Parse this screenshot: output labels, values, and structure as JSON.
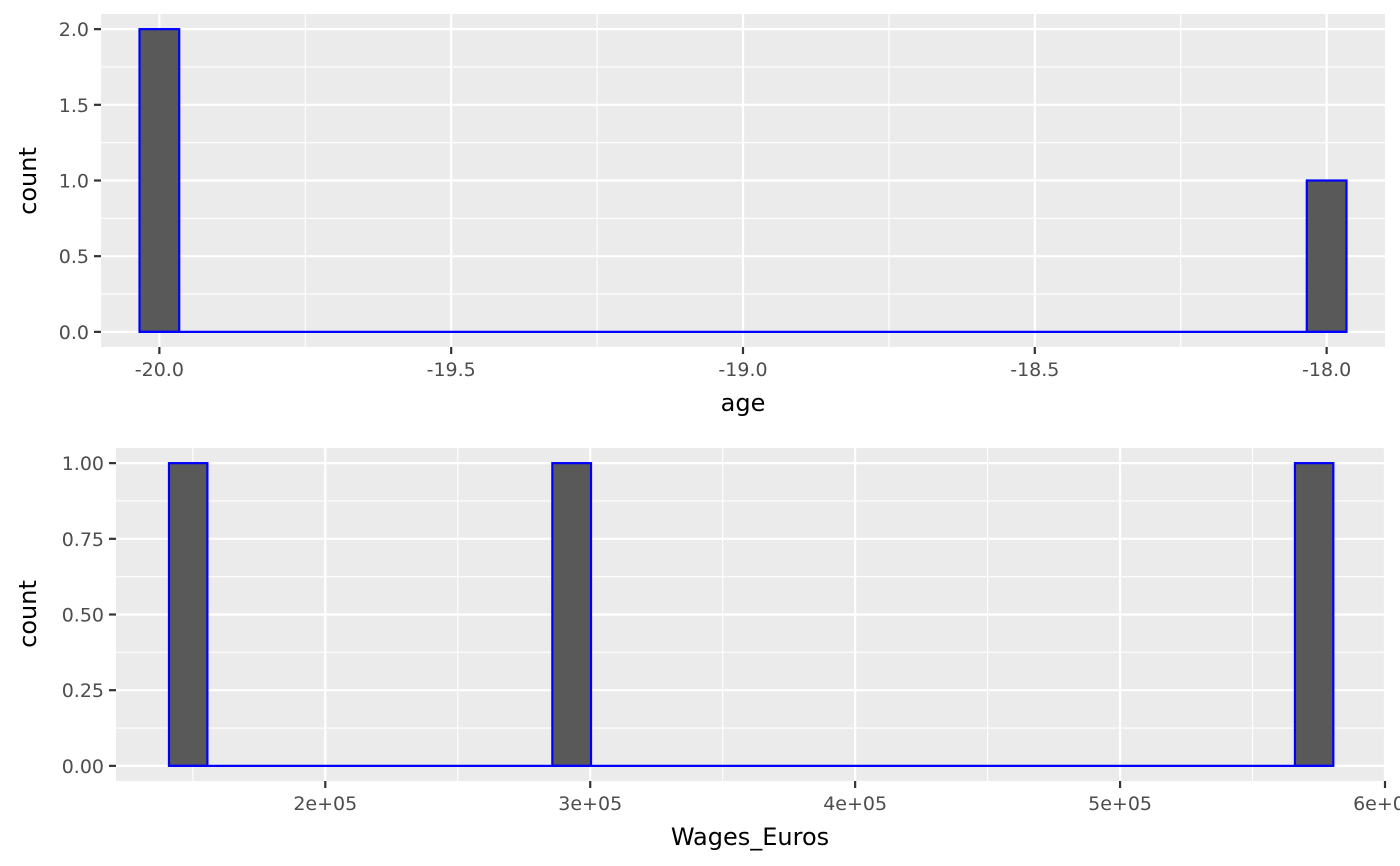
{
  "colors": {
    "panel_background": "#EBEBEB",
    "gridline": "#FFFFFF",
    "bar_fill": "#595959",
    "bar_outline": "#0000FF",
    "tick_label": "#4D4D4D",
    "axis_title": "#000000"
  },
  "chart_data": [
    {
      "type": "bar",
      "subtype": "histogram",
      "xlabel": "age",
      "ylabel": "count",
      "xlim": [
        -20.1,
        -17.9
      ],
      "ylim": [
        -0.1,
        2.1
      ],
      "grid": true,
      "legend": "none",
      "x_ticks": [
        {
          "value": -20.0,
          "label": "-20.0"
        },
        {
          "value": -19.5,
          "label": "-19.5"
        },
        {
          "value": -19.0,
          "label": "-19.0"
        },
        {
          "value": -18.5,
          "label": "-18.5"
        },
        {
          "value": -18.0,
          "label": "-18.0"
        }
      ],
      "y_ticks": [
        {
          "value": 0.0,
          "label": "0.0"
        },
        {
          "value": 0.5,
          "label": "0.5"
        },
        {
          "value": 1.0,
          "label": "1.0"
        },
        {
          "value": 1.5,
          "label": "1.5"
        },
        {
          "value": 2.0,
          "label": "2.0"
        }
      ],
      "bin_range": [
        -20.034,
        -17.966
      ],
      "bins": [
        {
          "x_min": -20.034,
          "x_max": -19.966,
          "count": 2
        },
        {
          "x_min": -18.034,
          "x_max": -17.966,
          "count": 1
        }
      ]
    },
    {
      "type": "bar",
      "subtype": "histogram",
      "xlabel": "Wages_Euros",
      "ylabel": "count",
      "xlim": [
        121000,
        600000
      ],
      "ylim": [
        -0.05,
        1.05
      ],
      "grid": true,
      "legend": "none",
      "x_ticks": [
        {
          "value": 200000,
          "label": "2e+05"
        },
        {
          "value": 300000,
          "label": "3e+05"
        },
        {
          "value": 400000,
          "label": "4e+05"
        },
        {
          "value": 500000,
          "label": "5e+05"
        },
        {
          "value": 600000,
          "label": "6e+05"
        }
      ],
      "y_ticks": [
        {
          "value": 0.0,
          "label": "0.00"
        },
        {
          "value": 0.25,
          "label": "0.25"
        },
        {
          "value": 0.5,
          "label": "0.50"
        },
        {
          "value": 0.75,
          "label": "0.75"
        },
        {
          "value": 1.0,
          "label": "1.00"
        }
      ],
      "bin_range": [
        141000,
        580500
      ],
      "bins": [
        {
          "x_min": 141000,
          "x_max": 155500,
          "count": 1
        },
        {
          "x_min": 285700,
          "x_max": 300300,
          "count": 1
        },
        {
          "x_min": 566000,
          "x_max": 580500,
          "count": 1
        }
      ]
    }
  ]
}
